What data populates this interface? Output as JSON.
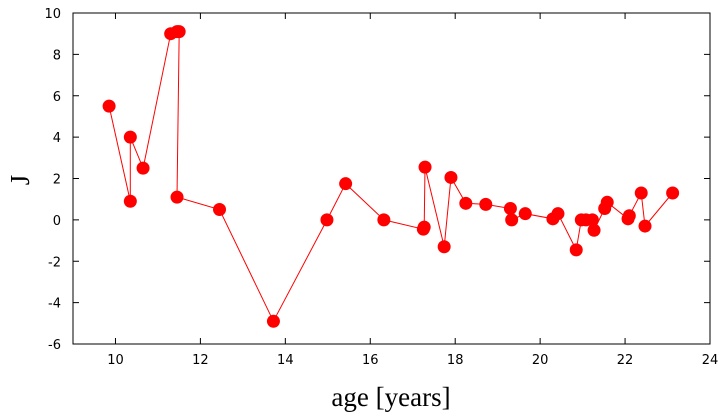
{
  "chart_data": {
    "type": "line",
    "xlabel": "age [years]",
    "ylabel": "J",
    "xlim": [
      9,
      24
    ],
    "ylim": [
      -6,
      10
    ],
    "xticks": [
      10,
      12,
      14,
      16,
      18,
      20,
      22,
      24
    ],
    "yticks": [
      -6,
      -4,
      -2,
      0,
      2,
      4,
      6,
      8,
      10
    ],
    "grid": false,
    "series_color": "#ff0000",
    "marker": "filled-circle",
    "series": [
      {
        "x": [
          9.85,
          10.35,
          10.35,
          10.65,
          11.3,
          11.45,
          11.5,
          11.45,
          12.45,
          13.72,
          14.98,
          15.42,
          16.32,
          17.25,
          17.27,
          17.29,
          17.74,
          17.9,
          18.25,
          18.72,
          19.3,
          19.33,
          19.65,
          20.3,
          20.42,
          20.85,
          20.97,
          21.08,
          21.23,
          21.27,
          21.52,
          21.58,
          22.07,
          22.1,
          22.38,
          22.47,
          23.12
        ],
        "y": [
          5.5,
          0.9,
          4.0,
          2.5,
          9.0,
          9.1,
          9.1,
          1.1,
          0.5,
          -4.9,
          0.0,
          1.75,
          0.0,
          -0.45,
          -0.35,
          2.55,
          -1.3,
          2.05,
          0.8,
          0.75,
          0.55,
          0.0,
          0.3,
          0.05,
          0.3,
          -1.45,
          0.0,
          0.0,
          0.0,
          -0.5,
          0.55,
          0.85,
          0.05,
          0.2,
          1.3,
          -0.3,
          1.3
        ]
      }
    ]
  }
}
